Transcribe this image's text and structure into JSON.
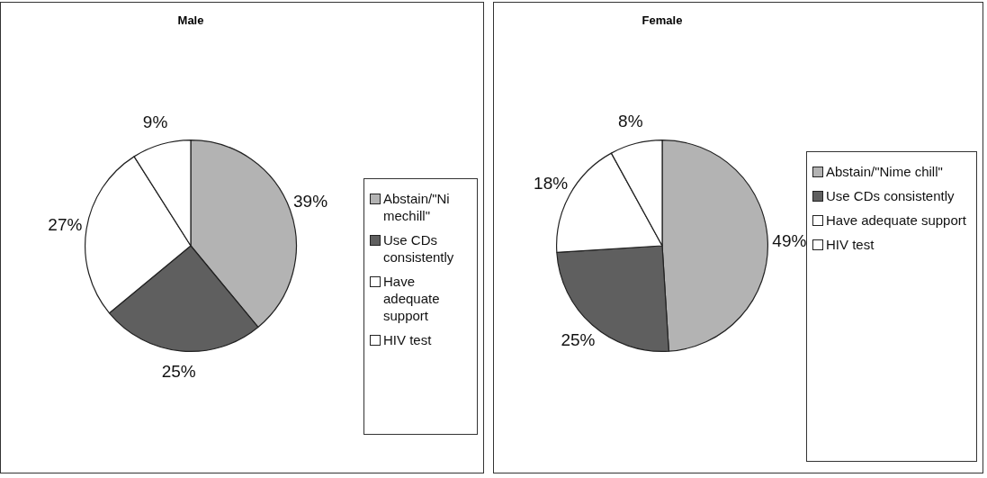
{
  "chart_data": [
    {
      "type": "pie",
      "title": "Male",
      "categories": [
        "Abstain/\"Ni mechill\"",
        "Use CDs consistently",
        "Have adequate support",
        "HIV test"
      ],
      "values": [
        39,
        25,
        27,
        9
      ],
      "colors": [
        "#b3b3b3",
        "#5f5f5f",
        "#ffffff",
        "#ffffff"
      ],
      "value_labels": [
        "39%",
        "25%",
        "27%",
        "9%"
      ],
      "legend": "right"
    },
    {
      "type": "pie",
      "title": "Female",
      "categories": [
        "Abstain/\"Nime chill\"",
        "Use CDs consistently",
        "Have adequate support",
        "HIV test"
      ],
      "values": [
        49,
        25,
        18,
        8
      ],
      "colors": [
        "#b3b3b3",
        "#5f5f5f",
        "#ffffff",
        "#ffffff"
      ],
      "value_labels": [
        "49%",
        "25%",
        "18%",
        "8%"
      ],
      "legend": "right"
    }
  ]
}
